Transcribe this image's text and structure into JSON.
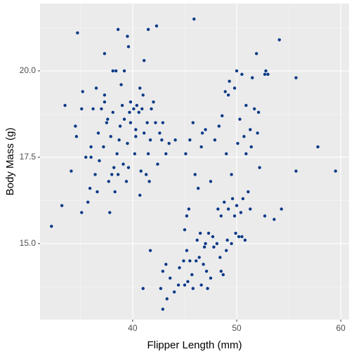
{
  "chart_data": {
    "type": "scatter",
    "xlabel": "Flipper Length (mm)",
    "ylabel": "Body Mass (g)",
    "color": "#0b3a87",
    "grid": true,
    "xlim": [
      31.1,
      60.8
    ],
    "ylim": [
      12.8,
      21.95
    ],
    "xticks": [
      40,
      50,
      60
    ],
    "yticks": [
      {
        "value": 15,
        "label": "15.0"
      },
      {
        "value": 17.5,
        "label": "17.5"
      },
      {
        "value": 20,
        "label": "20.0"
      }
    ],
    "x": [
      32.2,
      33.2,
      33.5,
      34.1,
      34.5,
      34.6,
      34.7,
      35.2,
      35.1,
      37.3,
      38.6,
      41.5,
      42.3,
      45.9,
      54.1,
      55.7,
      57.8,
      59.5,
      55.7,
      54.3,
      53.6,
      52.7,
      41.0,
      42.9,
      41.7,
      36.2,
      36.7,
      37.0,
      37.3,
      37.6,
      37.9,
      38.1,
      38.5,
      38.8,
      39.0,
      39.2,
      39.5,
      39.7,
      40.1,
      40.3,
      40.6,
      40.9,
      41.1,
      41.4,
      41.7,
      42.0,
      42.2,
      42.6,
      42.9,
      36.0,
      36.4,
      36.8,
      37.2,
      37.7,
      38.2,
      38.6,
      39.1,
      39.6,
      40.2,
      40.8,
      41.3,
      42.4,
      43.2,
      35.5,
      35.9,
      36.6,
      37.8,
      38.0,
      39.4,
      40.7,
      41.6,
      35.7,
      38.3,
      38.9,
      39.8,
      40.4,
      41.0,
      38.4,
      38.1,
      39.2,
      40.7,
      41.1,
      39.6,
      39.5,
      37.3,
      36.5,
      35.1,
      36.0,
      37.5,
      38.7,
      39.8,
      40.3,
      41.8,
      42.8,
      44.1,
      43.5,
      41.5,
      46.6,
      47.0,
      48.6,
      49.2,
      49.8,
      50.3,
      50.9,
      51.3,
      51.7,
      52.1,
      52.7,
      53.0,
      50.0,
      49.3,
      50.5,
      49.0,
      50.1,
      51.4,
      52.2,
      49.5,
      48.9,
      51.9,
      52.0,
      51.5,
      50.7,
      47.9,
      48.3,
      46.7,
      50.9,
      52.8,
      45.0,
      45.3,
      45.7,
      46.1,
      46.4,
      46.8,
      47.1,
      47.5,
      47.8,
      48.1,
      48.4,
      48.7,
      49.1,
      49.5,
      49.9,
      50.2,
      50.5,
      50.8,
      43.3,
      43.6,
      44.0,
      44.5,
      44.9,
      45.2,
      45.5,
      46.2,
      46.5,
      47.0,
      47.3,
      47.7,
      48.2,
      48.5,
      48.8,
      49.2,
      49.6,
      50.0,
      50.4,
      50.6,
      51.1,
      51.3,
      49.8,
      46.6,
      45.8,
      44.4,
      42.7,
      42.9,
      43.2,
      45.4,
      45.2,
      45.0,
      46.3,
      47.5,
      46.0,
      45.1,
      45.5,
      45.8,
      47.2,
      49.0,
      48.5,
      46.9
    ],
    "values": [
      15.5,
      16.1,
      19.0,
      17.1,
      18.4,
      18.1,
      21.1,
      19.4,
      15.9,
      20.5,
      21.2,
      21.2,
      21.3,
      21.5,
      20.9,
      19.8,
      17.8,
      17.1,
      17.1,
      16.0,
      15.7,
      15.8,
      13.7,
      13.1,
      14.8,
      18.9,
      18.2,
      18.9,
      19.3,
      18.6,
      18.1,
      18.8,
      17.6,
      18.4,
      19.0,
      18.6,
      17.9,
      18.8,
      18.9,
      18.3,
      18.8,
      18.9,
      18.2,
      18.5,
      18.0,
      19.1,
      18.5,
      18.2,
      18.5,
      17.8,
      17.0,
      17.4,
      17.8,
      16.8,
      17.2,
      17.0,
      17.3,
      17.2,
      17.6,
      17.1,
      17.0,
      17.3,
      17.6,
      17.5,
      16.6,
      16.5,
      15.9,
      17.0,
      16.8,
      16.4,
      16.8,
      16.2,
      16.5,
      19.6,
      19.1,
      19.0,
      19.3,
      20.0,
      20.0,
      20.0,
      19.5,
      20.3,
      20.7,
      21.0,
      19.1,
      19.5,
      18.9,
      17.5,
      18.5,
      18.0,
      18.5,
      18.1,
      18.9,
      18.0,
      18.0,
      17.9,
      17.6,
      17.8,
      18.3,
      18.7,
      19.3,
      19.5,
      18.6,
      19.0,
      18.3,
      18.9,
      18.8,
      19.9,
      19.9,
      20.0,
      19.7,
      19.9,
      17.6,
      17.9,
      17.8,
      17.2,
      17.0,
      19.4,
      20.5,
      18.2,
      19.8,
      18.1,
      18.0,
      18.4,
      18.2,
      17.6,
      20.0,
      13.8,
      13.9,
      14.1,
      14.5,
      14.6,
      14.4,
      14.2,
      14.0,
      14.9,
      15.0,
      14.6,
      14.1,
      15.1,
      15.0,
      15.3,
      15.2,
      15.2,
      15.1,
      13.4,
      14.0,
      13.6,
      14.3,
      14.5,
      14.8,
      14.5,
      15.1,
      15.3,
      15.0,
      15.3,
      15.2,
      16.0,
      15.8,
      16.2,
      16.0,
      16.3,
      16.1,
      15.9,
      16.3,
      16.5,
      16.0,
      15.8,
      13.8,
      13.7,
      13.8,
      13.7,
      14.2,
      14.4,
      16.0,
      15.8,
      15.4,
      16.6,
      16.8,
      17.0,
      17.6,
      18.0,
      18.5,
      13.7,
      14.8,
      14.2,
      14.9
    ]
  }
}
